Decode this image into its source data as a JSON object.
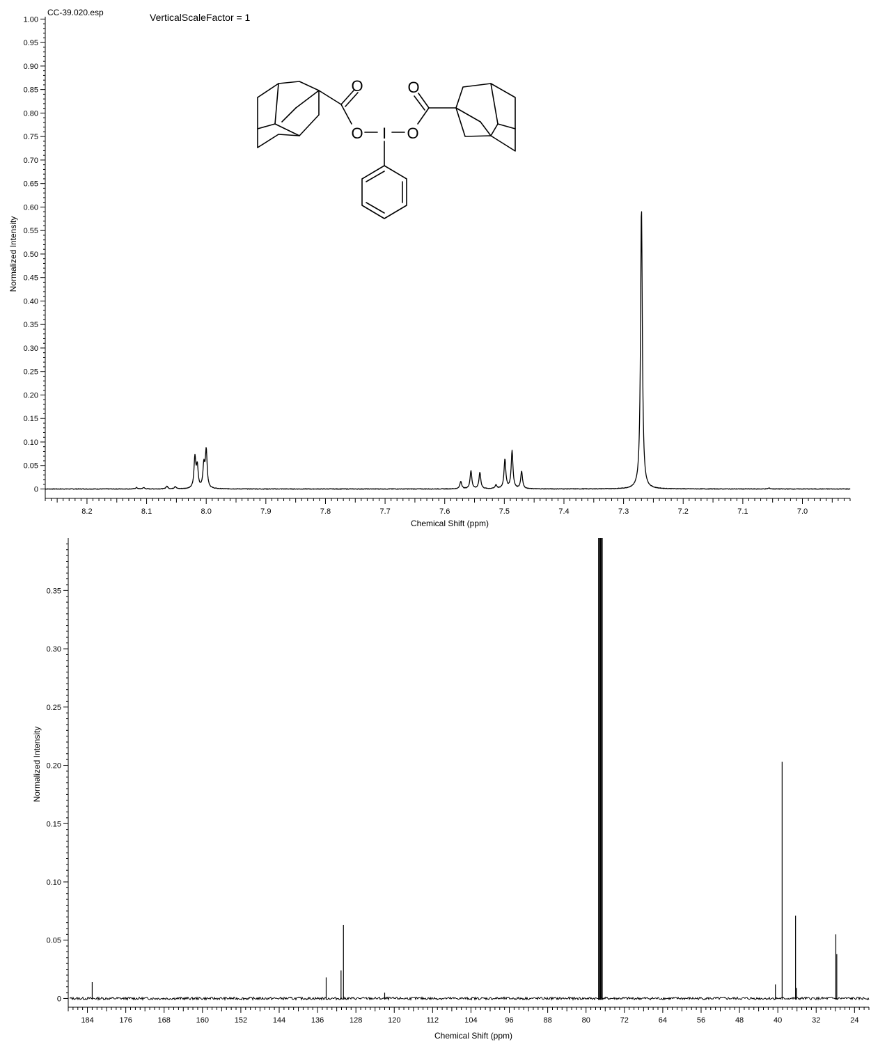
{
  "chart_data": [
    {
      "type": "line",
      "title": "",
      "file_label": "CC-39.020.esp",
      "scale_label": "VerticalScaleFactor = 1",
      "xlabel": "Chemical Shift (ppm)",
      "ylabel": "Normalized Intensity",
      "x_reversed": true,
      "xlim": [
        8.27,
        6.92
      ],
      "ylim": [
        -0.02,
        1.005
      ],
      "x_ticks": [
        "8.2",
        "8.1",
        "8.0",
        "7.9",
        "7.8",
        "7.7",
        "7.6",
        "7.5",
        "7.4",
        "7.3",
        "7.2",
        "7.1",
        "7.0"
      ],
      "y_ticks": [
        "0",
        "0.05",
        "0.10",
        "0.15",
        "0.20",
        "0.25",
        "0.30",
        "0.35",
        "0.40",
        "0.45",
        "0.50",
        "0.55",
        "0.60",
        "0.65",
        "0.70",
        "0.75",
        "0.80",
        "0.85",
        "0.90",
        "0.95",
        "1.00"
      ],
      "peaks": [
        {
          "x": 8.117,
          "y": 0.003
        },
        {
          "x": 8.105,
          "y": 0.003
        },
        {
          "x": 8.066,
          "y": 0.006
        },
        {
          "x": 8.052,
          "y": 0.005
        },
        {
          "x": 8.019,
          "y": 0.065
        },
        {
          "x": 8.015,
          "y": 0.045
        },
        {
          "x": 8.004,
          "y": 0.048
        },
        {
          "x": 8.0,
          "y": 0.08
        },
        {
          "x": 7.573,
          "y": 0.016
        },
        {
          "x": 7.556,
          "y": 0.038
        },
        {
          "x": 7.541,
          "y": 0.035
        },
        {
          "x": 7.514,
          "y": 0.008
        },
        {
          "x": 7.499,
          "y": 0.063
        },
        {
          "x": 7.487,
          "y": 0.08
        },
        {
          "x": 7.471,
          "y": 0.037
        },
        {
          "x": 7.27,
          "y": 0.6
        },
        {
          "x": 7.056,
          "y": 0.002
        }
      ],
      "linewidth_ppm": 0.0018
    },
    {
      "type": "line",
      "title": "",
      "xlabel": "Chemical Shift (ppm)",
      "ylabel": "Normalized Intensity",
      "x_reversed": true,
      "xlim": [
        188,
        21
      ],
      "ylim": [
        -0.0075,
        0.395
      ],
      "x_ticks": [
        "184",
        "176",
        "168",
        "160",
        "152",
        "144",
        "136",
        "128",
        "120",
        "112",
        "104",
        "96",
        "88",
        "80",
        "72",
        "64",
        "56",
        "48",
        "40",
        "32",
        "24"
      ],
      "y_ticks": [
        "0",
        "0.05",
        "0.10",
        "0.15",
        "0.20",
        "0.25",
        "0.30",
        "0.35"
      ],
      "peaks": [
        {
          "x": 183.0,
          "y": 0.014
        },
        {
          "x": 134.2,
          "y": 0.018
        },
        {
          "x": 131.1,
          "y": 0.024
        },
        {
          "x": 130.6,
          "y": 0.063
        },
        {
          "x": 122.0,
          "y": 0.005
        },
        {
          "x": 77.32,
          "y": 0.395
        },
        {
          "x": 77.0,
          "y": 0.395
        },
        {
          "x": 76.68,
          "y": 0.395
        },
        {
          "x": 40.5,
          "y": 0.012
        },
        {
          "x": 39.1,
          "y": 0.203
        },
        {
          "x": 36.3,
          "y": 0.071
        },
        {
          "x": 36.1,
          "y": 0.009
        },
        {
          "x": 27.9,
          "y": 0.055
        },
        {
          "x": 27.7,
          "y": 0.038
        }
      ]
    }
  ],
  "structure": {
    "atoms": {
      "o_left_carbonyl": "O",
      "o_right_carbonyl": "O",
      "o_left_ether": "O",
      "iodine": "I",
      "o_right_ether": "O"
    }
  }
}
